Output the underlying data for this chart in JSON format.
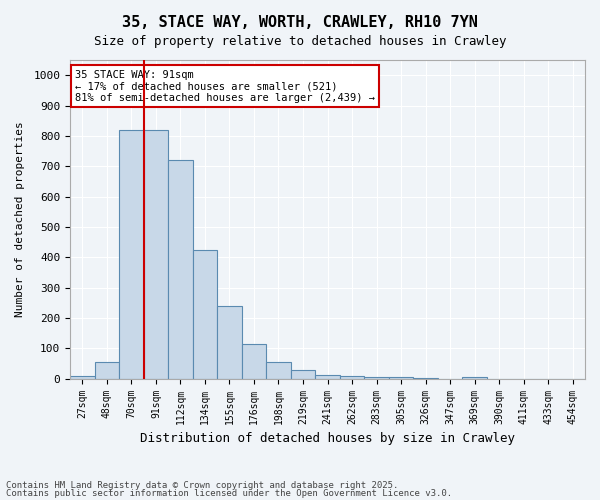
{
  "title": "35, STACE WAY, WORTH, CRAWLEY, RH10 7YN",
  "subtitle": "Size of property relative to detached houses in Crawley",
  "xlabel": "Distribution of detached houses by size in Crawley",
  "ylabel": "Number of detached properties",
  "bin_labels": [
    "27sqm",
    "48sqm",
    "70sqm",
    "91sqm",
    "112sqm",
    "134sqm",
    "155sqm",
    "176sqm",
    "198sqm",
    "219sqm",
    "241sqm",
    "262sqm",
    "283sqm",
    "305sqm",
    "326sqm",
    "347sqm",
    "369sqm",
    "390sqm",
    "411sqm",
    "433sqm",
    "454sqm"
  ],
  "bar_heights": [
    10,
    55,
    820,
    820,
    720,
    425,
    240,
    115,
    55,
    30,
    12,
    10,
    7,
    5,
    2,
    0,
    5,
    0,
    0,
    0,
    0
  ],
  "bar_color": "#c8d8e8",
  "bar_edge_color": "#5a8ab0",
  "property_sqm": 91,
  "property_bin_index": 2,
  "red_line_color": "#cc0000",
  "annotation_text": "35 STACE WAY: 91sqm\n← 17% of detached houses are smaller (521)\n81% of semi-detached houses are larger (2,439) →",
  "annotation_box_color": "#ffffff",
  "annotation_box_edge_color": "#cc0000",
  "ylim": [
    0,
    1050
  ],
  "yticks": [
    0,
    100,
    200,
    300,
    400,
    500,
    600,
    700,
    800,
    900,
    1000
  ],
  "footnote1": "Contains HM Land Registry data © Crown copyright and database right 2025.",
  "footnote2": "Contains public sector information licensed under the Open Government Licence v3.0.",
  "background_color": "#f0f4f8",
  "grid_color": "#ffffff"
}
